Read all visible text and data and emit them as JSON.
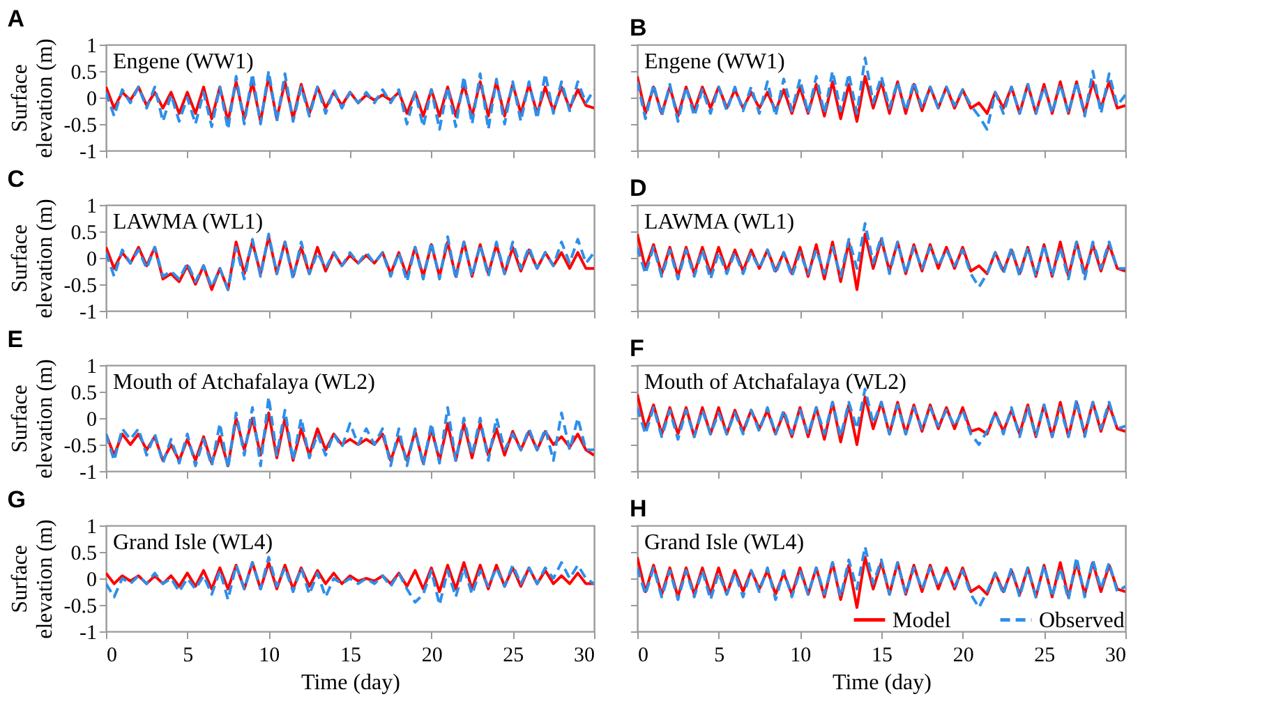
{
  "chart_data": [
    {
      "type": "line",
      "title": "A",
      "annotations": [
        "Engene (WW1)"
      ],
      "ylabel": "Surface elevation (m)",
      "tick_labels": "y",
      "xlim": [
        0,
        30
      ],
      "xticks": [
        0,
        5,
        10,
        15,
        20,
        25,
        30
      ],
      "ylim": [
        -1,
        1
      ],
      "yticks": [
        -1,
        -0.5,
        0,
        0.5,
        1
      ],
      "x": [
        0,
        0.5,
        1,
        1.5,
        2,
        2.5,
        3,
        3.5,
        4,
        4.5,
        5,
        5.5,
        6,
        6.5,
        7,
        7.5,
        8,
        8.5,
        9,
        9.5,
        10,
        10.5,
        11,
        11.5,
        12,
        12.5,
        13,
        13.5,
        14,
        14.5,
        15,
        15.5,
        16,
        16.5,
        17,
        17.5,
        18,
        18.5,
        19,
        19.5,
        20,
        20.5,
        21,
        21.5,
        22,
        22.5,
        23,
        23.5,
        24,
        24.5,
        25,
        25.5,
        26,
        26.5,
        27,
        27.5,
        28,
        28.5,
        29,
        29.5,
        30
      ],
      "series": [
        {
          "color": "#ff0000",
          "line_style": "solid",
          "values": [
            0.2,
            -0.2,
            0.1,
            -0.05,
            0.2,
            -0.15,
            0.1,
            -0.2,
            0.1,
            -0.3,
            0.1,
            -0.3,
            0.2,
            -0.4,
            0.2,
            -0.45,
            0.3,
            -0.4,
            0.3,
            -0.45,
            0.4,
            -0.4,
            0.3,
            -0.4,
            0.25,
            -0.3,
            0.2,
            -0.2,
            0.1,
            -0.15,
            0.1,
            -0.1,
            0.05,
            -0.05,
            0.05,
            -0.05,
            0.1,
            -0.3,
            0.1,
            -0.35,
            0.15,
            -0.35,
            0.2,
            -0.35,
            0.25,
            -0.35,
            0.3,
            -0.35,
            0.3,
            -0.35,
            0.25,
            -0.3,
            0.25,
            -0.3,
            0.2,
            -0.25,
            0.2,
            -0.2,
            0.15,
            -0.15,
            -0.2
          ]
        },
        {
          "color": "#2d8fea",
          "line_style": "dashed",
          "values": [
            0.1,
            -0.35,
            0.15,
            -0.1,
            0.2,
            -0.2,
            0.2,
            -0.45,
            0.05,
            -0.45,
            0.0,
            -0.5,
            0.1,
            -0.55,
            0.2,
            -0.6,
            0.4,
            -0.5,
            0.45,
            -0.5,
            0.5,
            -0.45,
            0.45,
            -0.45,
            0.2,
            -0.35,
            0.2,
            -0.3,
            0.15,
            -0.2,
            0.1,
            -0.1,
            0.1,
            -0.1,
            0.15,
            -0.1,
            0.15,
            -0.5,
            0.1,
            -0.55,
            0.15,
            -0.6,
            0.2,
            -0.55,
            0.4,
            -0.5,
            0.45,
            -0.6,
            0.35,
            -0.5,
            0.3,
            -0.45,
            0.3,
            -0.4,
            0.45,
            -0.3,
            0.3,
            -0.25,
            0.3,
            -0.1,
            0.15
          ]
        }
      ]
    },
    {
      "type": "line",
      "title": "B",
      "annotations": [
        "Engene (WW1)"
      ],
      "tick_labels": false,
      "xlim": [
        0,
        30
      ],
      "xticks": [
        0,
        5,
        10,
        15,
        20,
        25,
        30
      ],
      "ylim": [
        -1,
        1
      ],
      "yticks": [
        -1,
        -0.5,
        0,
        0.5,
        1
      ],
      "x": [
        0,
        0.5,
        1,
        1.5,
        2,
        2.5,
        3,
        3.5,
        4,
        4.5,
        5,
        5.5,
        6,
        6.5,
        7,
        7.5,
        8,
        8.5,
        9,
        9.5,
        10,
        10.5,
        11,
        11.5,
        12,
        12.5,
        13,
        13.5,
        14,
        14.5,
        15,
        15.5,
        16,
        16.5,
        17,
        17.5,
        18,
        18.5,
        19,
        19.5,
        20,
        20.5,
        21,
        21.5,
        22,
        22.5,
        23,
        23.5,
        24,
        24.5,
        25,
        25.5,
        26,
        26.5,
        27,
        27.5,
        28,
        28.5,
        29,
        29.5,
        30
      ],
      "series": [
        {
          "color": "#ff0000",
          "line_style": "solid",
          "values": [
            0.4,
            -0.3,
            0.2,
            -0.3,
            0.2,
            -0.35,
            0.2,
            -0.25,
            0.2,
            -0.2,
            0.2,
            -0.2,
            0.15,
            -0.2,
            0.1,
            -0.2,
            0.1,
            -0.25,
            0.15,
            -0.3,
            0.2,
            -0.3,
            0.25,
            -0.35,
            0.3,
            -0.4,
            0.25,
            -0.45,
            0.4,
            -0.2,
            0.3,
            -0.3,
            0.3,
            -0.3,
            0.25,
            -0.25,
            0.2,
            -0.2,
            0.2,
            -0.2,
            0.15,
            -0.2,
            -0.1,
            -0.3,
            0.1,
            -0.2,
            0.2,
            -0.3,
            0.25,
            -0.3,
            0.25,
            -0.3,
            0.3,
            -0.3,
            0.3,
            -0.3,
            0.3,
            -0.2,
            0.3,
            -0.2,
            -0.15
          ]
        },
        {
          "color": "#2d8fea",
          "line_style": "dashed",
          "values": [
            0.3,
            -0.4,
            0.25,
            -0.35,
            0.25,
            -0.45,
            0.2,
            -0.35,
            0.15,
            -0.3,
            0.2,
            -0.25,
            0.2,
            -0.25,
            0.2,
            -0.3,
            0.3,
            -0.35,
            0.35,
            -0.25,
            0.35,
            -0.3,
            0.4,
            -0.3,
            0.5,
            -0.25,
            0.45,
            -0.3,
            0.75,
            -0.1,
            0.4,
            -0.2,
            0.3,
            -0.25,
            0.3,
            -0.2,
            0.2,
            -0.2,
            0.2,
            -0.15,
            0.15,
            -0.15,
            -0.35,
            -0.6,
            0.1,
            -0.3,
            0.2,
            -0.3,
            0.25,
            -0.3,
            0.2,
            -0.3,
            0.25,
            -0.3,
            0.3,
            -0.35,
            0.5,
            -0.3,
            0.45,
            -0.15,
            0.05
          ]
        }
      ]
    },
    {
      "type": "line",
      "title": "C",
      "annotations": [
        "LAWMA (WL1)"
      ],
      "ylabel": "Surface elevation (m)",
      "tick_labels": "y",
      "xlim": [
        0,
        30
      ],
      "xticks": [
        0,
        5,
        10,
        15,
        20,
        25,
        30
      ],
      "ylim": [
        -1,
        1
      ],
      "yticks": [
        -1,
        -0.5,
        0,
        0.5,
        1
      ],
      "x": [
        0,
        0.5,
        1,
        1.5,
        2,
        2.5,
        3,
        3.5,
        4,
        4.5,
        5,
        5.5,
        6,
        6.5,
        7,
        7.5,
        8,
        8.5,
        9,
        9.5,
        10,
        10.5,
        11,
        11.5,
        12,
        12.5,
        13,
        13.5,
        14,
        14.5,
        15,
        15.5,
        16,
        16.5,
        17,
        17.5,
        18,
        18.5,
        19,
        19.5,
        20,
        20.5,
        21,
        21.5,
        22,
        22.5,
        23,
        23.5,
        24,
        24.5,
        25,
        25.5,
        26,
        26.5,
        27,
        27.5,
        28,
        28.5,
        29,
        29.5,
        30
      ],
      "series": [
        {
          "color": "#ff0000",
          "line_style": "solid",
          "values": [
            0.2,
            -0.2,
            0.1,
            -0.1,
            0.2,
            -0.15,
            0.2,
            -0.4,
            -0.3,
            -0.45,
            -0.15,
            -0.5,
            -0.15,
            -0.6,
            -0.2,
            -0.6,
            0.3,
            -0.3,
            0.3,
            -0.3,
            0.4,
            -0.3,
            0.3,
            -0.35,
            0.2,
            -0.3,
            0.2,
            -0.25,
            0.1,
            -0.15,
            0.05,
            -0.1,
            0.05,
            -0.1,
            0.1,
            -0.3,
            0.1,
            -0.35,
            0.2,
            -0.35,
            0.25,
            -0.35,
            0.3,
            -0.35,
            0.3,
            -0.35,
            0.25,
            -0.3,
            0.25,
            -0.3,
            0.2,
            -0.25,
            0.15,
            -0.2,
            0.1,
            -0.15,
            0.1,
            -0.2,
            0.1,
            -0.2,
            -0.2
          ]
        },
        {
          "color": "#2d8fea",
          "line_style": "dashed",
          "values": [
            0.1,
            -0.35,
            0.15,
            -0.1,
            0.15,
            -0.2,
            0.2,
            -0.35,
            -0.25,
            -0.4,
            -0.1,
            -0.45,
            -0.15,
            -0.55,
            -0.2,
            -0.6,
            0.2,
            -0.4,
            0.35,
            -0.35,
            0.45,
            -0.3,
            0.3,
            -0.4,
            0.3,
            -0.3,
            0.1,
            -0.2,
            0.1,
            -0.15,
            0.1,
            -0.1,
            0.1,
            -0.1,
            0.1,
            -0.35,
            0.1,
            -0.45,
            0.2,
            -0.4,
            0.3,
            -0.4,
            0.4,
            -0.4,
            0.3,
            -0.35,
            0.25,
            -0.35,
            0.3,
            -0.3,
            0.3,
            -0.2,
            0.2,
            -0.2,
            0.1,
            -0.15,
            0.3,
            -0.1,
            0.35,
            -0.1,
            0.1
          ]
        }
      ]
    },
    {
      "type": "line",
      "title": "D",
      "annotations": [
        "LAWMA (WL1)"
      ],
      "tick_labels": false,
      "xlim": [
        0,
        30
      ],
      "xticks": [
        0,
        5,
        10,
        15,
        20,
        25,
        30
      ],
      "ylim": [
        -1,
        1
      ],
      "yticks": [
        -1,
        -0.5,
        0,
        0.5,
        1
      ],
      "x": [
        0,
        0.5,
        1,
        1.5,
        2,
        2.5,
        3,
        3.5,
        4,
        4.5,
        5,
        5.5,
        6,
        6.5,
        7,
        7.5,
        8,
        8.5,
        9,
        9.5,
        10,
        10.5,
        11,
        11.5,
        12,
        12.5,
        13,
        13.5,
        14,
        14.5,
        15,
        15.5,
        16,
        16.5,
        17,
        17.5,
        18,
        18.5,
        19,
        19.5,
        20,
        20.5,
        21,
        21.5,
        22,
        22.5,
        23,
        23.5,
        24,
        24.5,
        25,
        25.5,
        26,
        26.5,
        27,
        27.5,
        28,
        28.5,
        29,
        29.5,
        30
      ],
      "series": [
        {
          "color": "#ff0000",
          "line_style": "solid",
          "values": [
            0.45,
            -0.2,
            0.25,
            -0.3,
            0.2,
            -0.35,
            0.2,
            -0.3,
            0.2,
            -0.3,
            0.2,
            -0.25,
            0.15,
            -0.25,
            0.15,
            -0.2,
            0.15,
            -0.25,
            0.1,
            -0.3,
            0.2,
            -0.35,
            0.25,
            -0.4,
            0.3,
            -0.45,
            0.3,
            -0.6,
            0.45,
            -0.2,
            0.35,
            -0.25,
            0.3,
            -0.3,
            0.25,
            -0.25,
            0.25,
            -0.2,
            0.2,
            -0.2,
            0.2,
            -0.25,
            -0.15,
            -0.3,
            0.1,
            -0.25,
            0.15,
            -0.3,
            0.2,
            -0.35,
            0.25,
            -0.35,
            0.3,
            -0.35,
            0.3,
            -0.3,
            0.25,
            -0.25,
            0.25,
            -0.2,
            -0.25
          ]
        },
        {
          "color": "#2d8fea",
          "line_style": "dashed",
          "values": [
            0.2,
            -0.3,
            0.2,
            -0.35,
            0.15,
            -0.4,
            0.15,
            -0.35,
            0.15,
            -0.4,
            0.1,
            -0.3,
            0.1,
            -0.3,
            0.1,
            -0.2,
            0.15,
            -0.3,
            0.1,
            -0.35,
            0.1,
            -0.3,
            0.15,
            -0.3,
            0.2,
            -0.35,
            0.35,
            -0.2,
            0.65,
            -0.1,
            0.4,
            -0.3,
            0.3,
            -0.3,
            0.2,
            -0.2,
            0.2,
            -0.15,
            0.15,
            -0.15,
            0.15,
            -0.3,
            -0.55,
            -0.3,
            0.1,
            -0.3,
            0.2,
            -0.35,
            0.2,
            -0.35,
            0.25,
            -0.35,
            0.2,
            -0.4,
            0.3,
            -0.4,
            0.3,
            -0.2,
            0.3,
            -0.2,
            -0.2
          ]
        }
      ]
    },
    {
      "type": "line",
      "title": "E",
      "annotations": [
        "Mouth of Atchafalaya (WL2)"
      ],
      "ylabel": "Surface elevation (m)",
      "tick_labels": "y",
      "xlim": [
        0,
        30
      ],
      "xticks": [
        0,
        5,
        10,
        15,
        20,
        25,
        30
      ],
      "ylim": [
        -1,
        1
      ],
      "yticks": [
        -1,
        -0.5,
        0,
        0.5,
        1
      ],
      "x": [
        0,
        0.5,
        1,
        1.5,
        2,
        2.5,
        3,
        3.5,
        4,
        4.5,
        5,
        5.5,
        6,
        6.5,
        7,
        7.5,
        8,
        8.5,
        9,
        9.5,
        10,
        10.5,
        11,
        11.5,
        12,
        12.5,
        13,
        13.5,
        14,
        14.5,
        15,
        15.5,
        16,
        16.5,
        17,
        17.5,
        18,
        18.5,
        19,
        19.5,
        20,
        20.5,
        21,
        21.5,
        22,
        22.5,
        23,
        23.5,
        24,
        24.5,
        25,
        25.5,
        26,
        26.5,
        27,
        27.5,
        28,
        28.5,
        29,
        29.5,
        30
      ],
      "series": [
        {
          "color": "#ff0000",
          "line_style": "solid",
          "values": [
            -0.3,
            -0.7,
            -0.3,
            -0.5,
            -0.3,
            -0.6,
            -0.35,
            -0.8,
            -0.5,
            -0.8,
            -0.4,
            -0.8,
            -0.35,
            -0.85,
            -0.35,
            -0.9,
            0.0,
            -0.6,
            0.0,
            -0.7,
            0.1,
            -0.75,
            0.0,
            -0.8,
            -0.2,
            -0.7,
            -0.2,
            -0.6,
            -0.3,
            -0.5,
            -0.4,
            -0.5,
            -0.4,
            -0.5,
            -0.3,
            -0.8,
            -0.35,
            -0.8,
            -0.25,
            -0.85,
            -0.2,
            -0.8,
            -0.1,
            -0.8,
            -0.1,
            -0.75,
            -0.1,
            -0.7,
            -0.2,
            -0.7,
            -0.25,
            -0.6,
            -0.25,
            -0.6,
            -0.25,
            -0.5,
            -0.35,
            -0.55,
            -0.3,
            -0.6,
            -0.7
          ]
        },
        {
          "color": "#2d8fea",
          "line_style": "dashed",
          "values": [
            -0.3,
            -0.8,
            -0.2,
            -0.4,
            -0.2,
            -0.7,
            -0.3,
            -0.85,
            -0.4,
            -0.85,
            -0.3,
            -0.9,
            -0.4,
            -0.9,
            -0.1,
            -0.95,
            0.1,
            -0.7,
            0.2,
            -0.9,
            0.4,
            -0.7,
            0.15,
            -0.8,
            0.0,
            -0.75,
            -0.3,
            -0.7,
            -0.3,
            -0.55,
            -0.1,
            -0.5,
            -0.2,
            -0.5,
            -0.2,
            -0.9,
            -0.2,
            -0.9,
            -0.2,
            -0.9,
            -0.1,
            -0.85,
            0.2,
            -0.8,
            0.0,
            -0.7,
            0.0,
            -0.8,
            0.0,
            -0.6,
            -0.3,
            -0.6,
            -0.2,
            -0.6,
            -0.2,
            -0.8,
            0.1,
            -0.6,
            0.0,
            -0.6,
            -0.6
          ]
        }
      ]
    },
    {
      "type": "line",
      "title": "F",
      "annotations": [
        "Mouth of Atchafalaya (WL2)"
      ],
      "tick_labels": false,
      "xlim": [
        0,
        30
      ],
      "xticks": [
        0,
        5,
        10,
        15,
        20,
        25,
        30
      ],
      "ylim": [
        -1,
        1
      ],
      "yticks": [
        -1,
        -0.5,
        0,
        0.5,
        1
      ],
      "x": [
        0,
        0.5,
        1,
        1.5,
        2,
        2.5,
        3,
        3.5,
        4,
        4.5,
        5,
        5.5,
        6,
        6.5,
        7,
        7.5,
        8,
        8.5,
        9,
        9.5,
        10,
        10.5,
        11,
        11.5,
        12,
        12.5,
        13,
        13.5,
        14,
        14.5,
        15,
        15.5,
        16,
        16.5,
        17,
        17.5,
        18,
        18.5,
        19,
        19.5,
        20,
        20.5,
        21,
        21.5,
        22,
        22.5,
        23,
        23.5,
        24,
        24.5,
        25,
        25.5,
        26,
        26.5,
        27,
        27.5,
        28,
        28.5,
        29,
        29.5,
        30
      ],
      "series": [
        {
          "color": "#ff0000",
          "line_style": "solid",
          "values": [
            0.45,
            -0.2,
            0.25,
            -0.3,
            0.2,
            -0.3,
            0.2,
            -0.35,
            0.2,
            -0.3,
            0.2,
            -0.3,
            0.15,
            -0.25,
            0.15,
            -0.2,
            0.15,
            -0.3,
            0.1,
            -0.35,
            0.2,
            -0.35,
            0.2,
            -0.4,
            0.3,
            -0.45,
            0.25,
            -0.5,
            0.4,
            -0.2,
            0.3,
            -0.3,
            0.3,
            -0.3,
            0.25,
            -0.25,
            0.25,
            -0.2,
            0.2,
            -0.2,
            0.2,
            -0.25,
            -0.2,
            -0.3,
            0.1,
            -0.25,
            0.15,
            -0.3,
            0.25,
            -0.35,
            0.25,
            -0.35,
            0.3,
            -0.35,
            0.3,
            -0.3,
            0.3,
            -0.25,
            0.25,
            -0.2,
            -0.25
          ]
        },
        {
          "color": "#2d8fea",
          "line_style": "dashed",
          "values": [
            0.2,
            -0.3,
            0.2,
            -0.35,
            0.15,
            -0.4,
            0.15,
            -0.35,
            0.15,
            -0.3,
            0.1,
            -0.3,
            0.1,
            -0.3,
            0.15,
            -0.25,
            0.2,
            -0.3,
            0.15,
            -0.3,
            0.15,
            -0.3,
            0.2,
            -0.3,
            0.3,
            -0.35,
            0.3,
            -0.2,
            0.55,
            -0.1,
            0.3,
            -0.3,
            0.25,
            -0.3,
            0.2,
            -0.2,
            0.2,
            -0.15,
            0.15,
            -0.15,
            0.15,
            -0.3,
            -0.5,
            -0.25,
            0.1,
            -0.3,
            0.2,
            -0.35,
            0.2,
            -0.35,
            0.25,
            -0.35,
            0.2,
            -0.35,
            0.35,
            -0.35,
            0.3,
            -0.2,
            0.3,
            -0.2,
            -0.15
          ]
        }
      ]
    },
    {
      "type": "line",
      "title": "G",
      "annotations": [
        "Grand Isle (WL4)"
      ],
      "ylabel": "Surface elevation (m)",
      "xlabel": "Time (day)",
      "xlim": [
        0,
        30
      ],
      "xticks": [
        0,
        5,
        10,
        15,
        20,
        25,
        30
      ],
      "ylim": [
        -1,
        1
      ],
      "yticks": [
        -1,
        -0.5,
        0,
        0.5,
        1
      ],
      "x": [
        0,
        0.5,
        1,
        1.5,
        2,
        2.5,
        3,
        3.5,
        4,
        4.5,
        5,
        5.5,
        6,
        6.5,
        7,
        7.5,
        8,
        8.5,
        9,
        9.5,
        10,
        10.5,
        11,
        11.5,
        12,
        12.5,
        13,
        13.5,
        14,
        14.5,
        15,
        15.5,
        16,
        16.5,
        17,
        17.5,
        18,
        18.5,
        19,
        19.5,
        20,
        20.5,
        21,
        21.5,
        22,
        22.5,
        23,
        23.5,
        24,
        24.5,
        25,
        25.5,
        26,
        26.5,
        27,
        27.5,
        28,
        28.5,
        29,
        29.5,
        30
      ],
      "series": [
        {
          "color": "#ff0000",
          "line_style": "solid",
          "values": [
            0.1,
            -0.1,
            0.05,
            -0.05,
            0.05,
            -0.1,
            0.05,
            -0.1,
            0.05,
            -0.15,
            0.1,
            -0.15,
            0.15,
            -0.2,
            0.2,
            -0.2,
            0.25,
            -0.2,
            0.3,
            -0.2,
            0.3,
            -0.2,
            0.25,
            -0.2,
            0.2,
            -0.15,
            0.15,
            -0.1,
            0.1,
            -0.1,
            0.05,
            -0.05,
            0.0,
            -0.05,
            0.05,
            -0.1,
            0.1,
            -0.15,
            0.15,
            -0.2,
            0.2,
            -0.25,
            0.25,
            -0.2,
            0.3,
            -0.2,
            0.25,
            -0.2,
            0.25,
            -0.15,
            0.2,
            -0.15,
            0.2,
            -0.1,
            0.15,
            -0.1,
            0.05,
            -0.1,
            0.1,
            -0.1,
            -0.1
          ]
        },
        {
          "color": "#2d8fea",
          "line_style": "dashed",
          "values": [
            -0.1,
            -0.35,
            0.0,
            -0.1,
            0.05,
            -0.1,
            0.1,
            -0.1,
            0.0,
            -0.25,
            0.0,
            -0.2,
            0.05,
            -0.3,
            0.15,
            -0.4,
            0.25,
            -0.2,
            0.3,
            -0.2,
            0.4,
            -0.15,
            0.2,
            -0.25,
            0.2,
            -0.3,
            0.1,
            -0.35,
            0.0,
            -0.1,
            0.0,
            -0.1,
            0.0,
            -0.1,
            0.05,
            -0.15,
            0.1,
            -0.2,
            -0.45,
            -0.3,
            0.15,
            -0.5,
            0.15,
            -0.35,
            0.2,
            -0.3,
            0.15,
            -0.15,
            0.2,
            -0.15,
            0.25,
            -0.1,
            0.2,
            -0.1,
            0.2,
            0.0,
            0.3,
            0.0,
            0.25,
            0.0,
            -0.1
          ]
        }
      ]
    },
    {
      "type": "line",
      "title": "H",
      "annotations": [
        "Grand Isle (WL4)"
      ],
      "xlabel": "Time (day)",
      "tick_labels": "x",
      "legend": "bottom right",
      "xlim": [
        0,
        30
      ],
      "xticks": [
        0,
        5,
        10,
        15,
        20,
        25,
        30
      ],
      "ylim": [
        -1,
        1
      ],
      "yticks": [
        -1,
        -0.5,
        0,
        0.5,
        1
      ],
      "x": [
        0,
        0.5,
        1,
        1.5,
        2,
        2.5,
        3,
        3.5,
        4,
        4.5,
        5,
        5.5,
        6,
        6.5,
        7,
        7.5,
        8,
        8.5,
        9,
        9.5,
        10,
        10.5,
        11,
        11.5,
        12,
        12.5,
        13,
        13.5,
        14,
        14.5,
        15,
        15.5,
        16,
        16.5,
        17,
        17.5,
        18,
        18.5,
        19,
        19.5,
        20,
        20.5,
        21,
        21.5,
        22,
        22.5,
        23,
        23.5,
        24,
        24.5,
        25,
        25.5,
        26,
        26.5,
        27,
        27.5,
        28,
        28.5,
        29,
        29.5,
        30
      ],
      "series": [
        {
          "name": "Model",
          "color": "#ff0000",
          "line_style": "solid",
          "values": [
            0.4,
            -0.25,
            0.25,
            -0.3,
            0.2,
            -0.35,
            0.2,
            -0.3,
            0.2,
            -0.3,
            0.2,
            -0.3,
            0.15,
            -0.25,
            0.15,
            -0.2,
            0.15,
            -0.3,
            0.1,
            -0.3,
            0.2,
            -0.3,
            0.2,
            -0.35,
            0.3,
            -0.4,
            0.25,
            -0.55,
            0.4,
            -0.2,
            0.3,
            -0.3,
            0.3,
            -0.3,
            0.25,
            -0.25,
            0.25,
            -0.2,
            0.2,
            -0.2,
            0.2,
            -0.25,
            -0.15,
            -0.3,
            0.1,
            -0.25,
            0.15,
            -0.3,
            0.2,
            -0.35,
            0.25,
            -0.35,
            0.3,
            -0.35,
            0.3,
            -0.3,
            0.3,
            -0.25,
            0.25,
            -0.2,
            -0.25
          ]
        },
        {
          "name": "Observed",
          "color": "#2d8fea",
          "line_style": "dashed",
          "values": [
            0.2,
            -0.3,
            0.2,
            -0.35,
            0.15,
            -0.4,
            0.15,
            -0.35,
            0.15,
            -0.4,
            0.1,
            -0.3,
            0.1,
            -0.35,
            0.15,
            -0.25,
            0.2,
            -0.4,
            0.15,
            -0.35,
            0.15,
            -0.3,
            0.2,
            -0.3,
            0.3,
            -0.35,
            0.35,
            -0.2,
            0.6,
            -0.1,
            0.35,
            -0.3,
            0.3,
            -0.3,
            0.2,
            -0.2,
            0.2,
            -0.15,
            0.15,
            -0.15,
            0.15,
            -0.3,
            -0.55,
            -0.25,
            0.1,
            -0.3,
            0.2,
            -0.35,
            0.2,
            -0.35,
            0.25,
            -0.35,
            0.2,
            -0.4,
            0.4,
            -0.35,
            0.35,
            -0.2,
            0.3,
            -0.25,
            -0.15
          ]
        }
      ]
    }
  ]
}
